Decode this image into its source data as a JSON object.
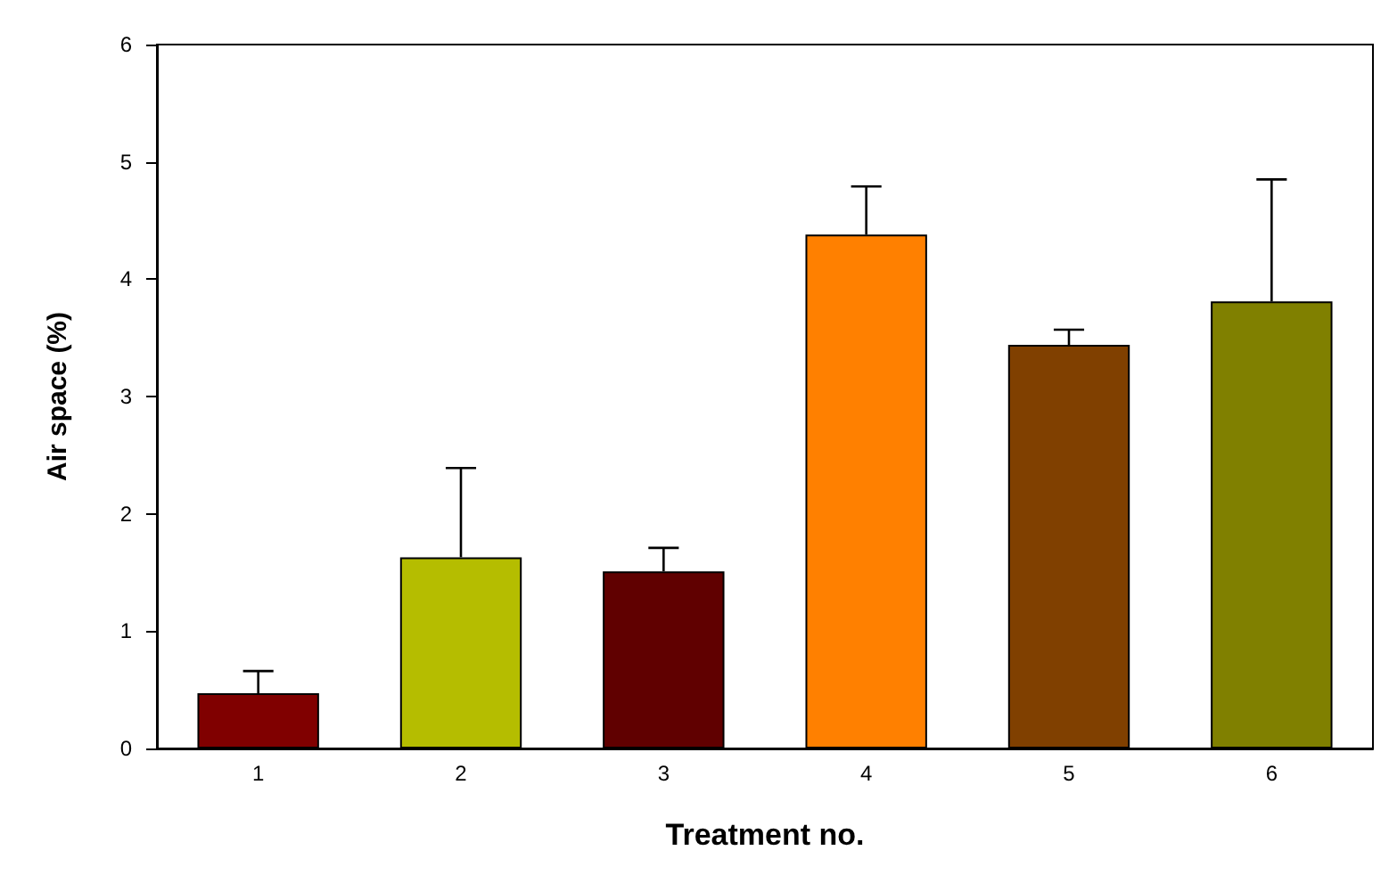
{
  "chart_data": {
    "type": "bar",
    "xlabel": "Treatment no.",
    "ylabel": "Air space (%)",
    "categories": [
      "1",
      "2",
      "3",
      "4",
      "5",
      "6"
    ],
    "values": [
      0.47,
      1.63,
      1.51,
      4.38,
      3.44,
      3.81
    ],
    "colors": [
      "#800000",
      "#b5bd00",
      "#600000",
      "#ff8000",
      "#804000",
      "#808000"
    ],
    "errors": [
      [
        0.47,
        0.66
      ],
      [
        1.63,
        2.39
      ],
      [
        1.51,
        1.71
      ],
      [
        4.38,
        4.79
      ],
      [
        3.44,
        3.57
      ],
      [
        3.81,
        4.85
      ]
    ],
    "ylim": [
      0,
      6
    ],
    "yticks": [
      0,
      1,
      2,
      3,
      4,
      5,
      6
    ],
    "grid": false
  }
}
